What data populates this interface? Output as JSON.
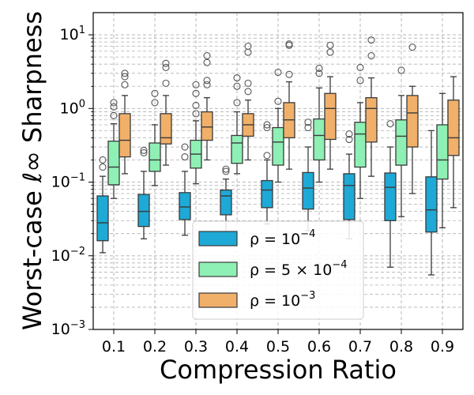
{
  "chart_data": {
    "type": "boxplot",
    "xlabel": "Compression Ratio",
    "ylabel": "Worst-case ℓ∞ Sharpness",
    "yscale": "log",
    "ylim": [
      0.001,
      20
    ],
    "y_ticks": [
      {
        "value": 0.001,
        "base": "10",
        "exp": "−3"
      },
      {
        "value": 0.01,
        "base": "10",
        "exp": "−2"
      },
      {
        "value": 0.1,
        "base": "10",
        "exp": "−1"
      },
      {
        "value": 1,
        "base": "10",
        "exp": "0"
      },
      {
        "value": 10,
        "base": "10",
        "exp": "1"
      }
    ],
    "grid": true,
    "categories": [
      "0.1",
      "0.2",
      "0.3",
      "0.4",
      "0.5",
      "0.6",
      "0.7",
      "0.8",
      "0.9"
    ],
    "legend": {
      "placement": "bottom-center",
      "entries": [
        {
          "prefix": "ρ = 10",
          "sup": "−4",
          "color": "#1ea9d6"
        },
        {
          "prefix": "ρ = 5 × 10",
          "sup": "−4",
          "color": "#8ef0b4"
        },
        {
          "prefix": "ρ = 10",
          "sup": "−3",
          "color": "#f0b06a"
        }
      ]
    },
    "series": [
      {
        "name": "rho=1e-4",
        "color": "#1ea9d6",
        "boxes": [
          {
            "whislo": 0.011,
            "q1": 0.016,
            "med": 0.028,
            "q3": 0.065,
            "whishi": 0.12,
            "fliers": [
              0.16,
              0.2
            ]
          },
          {
            "whislo": 0.017,
            "q1": 0.025,
            "med": 0.04,
            "q3": 0.068,
            "whishi": 0.14,
            "fliers": [
              0.25,
              0.27
            ]
          },
          {
            "whislo": 0.019,
            "q1": 0.031,
            "med": 0.046,
            "q3": 0.072,
            "whishi": 0.14,
            "fliers": [
              0.22,
              0.3
            ]
          },
          {
            "whislo": 0.017,
            "q1": 0.036,
            "med": 0.065,
            "q3": 0.078,
            "whishi": 0.11,
            "fliers": [
              0.14,
              0.15
            ]
          },
          {
            "whislo": 0.027,
            "q1": 0.045,
            "med": 0.078,
            "q3": 0.105,
            "whishi": 0.2,
            "fliers": [
              0.23,
              0.55,
              0.6
            ]
          },
          {
            "whislo": 0.022,
            "q1": 0.043,
            "med": 0.083,
            "q3": 0.135,
            "whishi": 0.3,
            "fliers": [
              0.55,
              0.65
            ]
          },
          {
            "whislo": 0.017,
            "q1": 0.031,
            "med": 0.09,
            "q3": 0.13,
            "whishi": 0.24,
            "fliers": [
              0.38,
              0.45
            ]
          },
          {
            "whislo": 0.007,
            "q1": 0.03,
            "med": 0.085,
            "q3": 0.133,
            "whishi": 0.3,
            "fliers": [
              0.62
            ]
          },
          {
            "whislo": 0.0055,
            "q1": 0.021,
            "med": 0.042,
            "q3": 0.118,
            "whishi": 0.5,
            "fliers": []
          }
        ]
      },
      {
        "name": "rho=5e-4",
        "color": "#8ef0b4",
        "boxes": [
          {
            "whislo": 0.06,
            "q1": 0.092,
            "med": 0.16,
            "q3": 0.36,
            "whishi": 0.62,
            "fliers": [
              0.8,
              1.05,
              1.2
            ]
          },
          {
            "whislo": 0.09,
            "q1": 0.14,
            "med": 0.2,
            "q3": 0.34,
            "whishi": 0.6,
            "fliers": [
              1.2,
              1.6
            ]
          },
          {
            "whislo": 0.095,
            "q1": 0.155,
            "med": 0.24,
            "q3": 0.37,
            "whishi": 0.68,
            "fliers": [
              0.85,
              1.1,
              1.6,
              2.1
            ]
          },
          {
            "whislo": 0.13,
            "q1": 0.18,
            "med": 0.34,
            "q3": 0.43,
            "whishi": 0.9,
            "fliers": [
              1.2,
              2.0,
              2.6
            ]
          },
          {
            "whislo": 0.1,
            "q1": 0.17,
            "med": 0.35,
            "q3": 0.55,
            "whishi": 1.0,
            "fliers": [
              1.25,
              3.1
            ]
          },
          {
            "whislo": 0.1,
            "q1": 0.2,
            "med": 0.43,
            "q3": 0.72,
            "whishi": 1.9,
            "fliers": [
              3.0,
              3.5
            ]
          },
          {
            "whislo": 0.06,
            "q1": 0.16,
            "med": 0.45,
            "q3": 0.65,
            "whishi": 1.2,
            "fliers": [
              2.4,
              3.6
            ]
          },
          {
            "whislo": 0.034,
            "q1": 0.17,
            "med": 0.42,
            "q3": 0.7,
            "whishi": 1.5,
            "fliers": [
              3.3
            ]
          },
          {
            "whislo": 0.024,
            "q1": 0.11,
            "med": 0.2,
            "q3": 0.6,
            "whishi": 1.6,
            "fliers": []
          }
        ]
      },
      {
        "name": "rho=1e-3",
        "color": "#f0b06a",
        "boxes": [
          {
            "whislo": 0.13,
            "q1": 0.22,
            "med": 0.37,
            "q3": 0.85,
            "whishi": 1.5,
            "fliers": [
              2.1,
              2.7,
              3.0
            ]
          },
          {
            "whislo": 0.17,
            "q1": 0.33,
            "med": 0.4,
            "q3": 0.85,
            "whishi": 1.5,
            "fliers": [
              2.2,
              3.6,
              4.1
            ]
          },
          {
            "whislo": 0.2,
            "q1": 0.37,
            "med": 0.56,
            "q3": 0.9,
            "whishi": 1.4,
            "fliers": [
              2.1,
              2.4,
              4.2,
              5.2
            ]
          },
          {
            "whislo": 0.2,
            "q1": 0.42,
            "med": 0.6,
            "q3": 0.85,
            "whishi": 1.3,
            "fliers": [
              1.7,
              2.2,
              5.8,
              7.0
            ]
          },
          {
            "whislo": 0.15,
            "q1": 0.4,
            "med": 0.7,
            "q3": 1.2,
            "whishi": 2.3,
            "fliers": [
              2.9,
              7.2,
              7.5
            ]
          },
          {
            "whislo": 0.15,
            "q1": 0.38,
            "med": 1.0,
            "q3": 1.6,
            "whishi": 2.7,
            "fliers": [
              5.8,
              7.2
            ]
          },
          {
            "whislo": 0.12,
            "q1": 0.35,
            "med": 1.0,
            "q3": 1.4,
            "whishi": 2.6,
            "fliers": [
              5.2,
              8.5
            ]
          },
          {
            "whislo": 0.07,
            "q1": 0.3,
            "med": 0.87,
            "q3": 1.5,
            "whishi": 2.0,
            "fliers": [
              6.8
            ]
          },
          {
            "whislo": 0.045,
            "q1": 0.23,
            "med": 0.4,
            "q3": 1.3,
            "whishi": 2.7,
            "fliers": []
          }
        ]
      }
    ]
  }
}
